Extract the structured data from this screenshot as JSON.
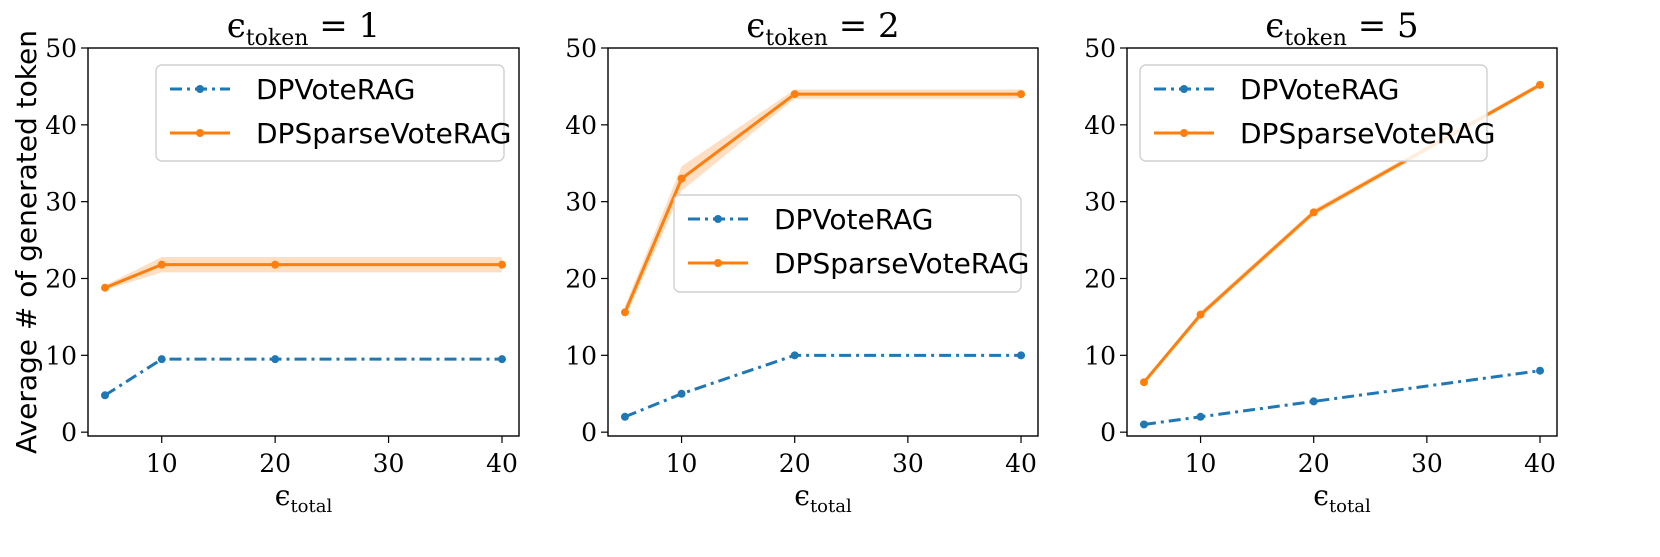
{
  "chart_data": [
    {
      "type": "line",
      "title": {
        "symbol": "ϵ",
        "sub": "token",
        "rest": " = 1"
      },
      "ylabel": "Average # of generated token",
      "xlabel": {
        "symbol": "ϵ",
        "sub": "total"
      },
      "xlim": [
        3.5,
        41.5
      ],
      "ylim": [
        -0.5,
        50
      ],
      "xticks": [
        "10",
        "20",
        "30",
        "40"
      ],
      "yticks": [
        "0",
        "10",
        "20",
        "30",
        "40",
        "50"
      ],
      "legend_position": "upper-center",
      "series": [
        {
          "name": "DPVoteRAG",
          "color": "#1f77b4",
          "dash": "dashdot",
          "x": [
            5,
            10,
            20,
            40
          ],
          "y": [
            4.8,
            9.5,
            9.5,
            9.5
          ]
        },
        {
          "name": "DPSparseVoteRAG",
          "color": "#ff7f0e",
          "dash": "solid",
          "x": [
            5,
            10,
            20,
            40
          ],
          "y": [
            18.8,
            21.8,
            21.8,
            21.8
          ],
          "band": [
            0.3,
            1.0,
            1.0,
            1.0
          ]
        }
      ]
    },
    {
      "type": "line",
      "title": {
        "symbol": "ϵ",
        "sub": "token",
        "rest": " = 2"
      },
      "ylabel": "",
      "xlabel": {
        "symbol": "ϵ",
        "sub": "total"
      },
      "xlim": [
        3.5,
        41.5
      ],
      "ylim": [
        -0.5,
        50
      ],
      "xticks": [
        "10",
        "20",
        "30",
        "40"
      ],
      "yticks": [
        "0",
        "10",
        "20",
        "30",
        "40",
        "50"
      ],
      "legend_position": "center-right",
      "series": [
        {
          "name": "DPVoteRAG",
          "color": "#1f77b4",
          "dash": "dashdot",
          "x": [
            5,
            10,
            20,
            40
          ],
          "y": [
            2.0,
            5.0,
            10.0,
            10.0
          ]
        },
        {
          "name": "DPSparseVoteRAG",
          "color": "#ff7f0e",
          "dash": "solid",
          "x": [
            5,
            10,
            20,
            40
          ],
          "y": [
            15.6,
            33.0,
            44.0,
            44.0
          ],
          "band": [
            0.8,
            1.6,
            0.6,
            0.6
          ]
        }
      ]
    },
    {
      "type": "line",
      "title": {
        "symbol": "ϵ",
        "sub": "token",
        "rest": " = 5"
      },
      "ylabel": "",
      "xlabel": {
        "symbol": "ϵ",
        "sub": "total"
      },
      "xlim": [
        3.5,
        41.5
      ],
      "ylim": [
        -0.5,
        50
      ],
      "xticks": [
        "10",
        "20",
        "30",
        "40"
      ],
      "yticks": [
        "0",
        "10",
        "20",
        "30",
        "40",
        "50"
      ],
      "legend_position": "upper-left",
      "series": [
        {
          "name": "DPVoteRAG",
          "color": "#1f77b4",
          "dash": "dashdot",
          "x": [
            5,
            10,
            20,
            40
          ],
          "y": [
            1.0,
            2.0,
            4.0,
            8.0
          ]
        },
        {
          "name": "DPSparseVoteRAG",
          "color": "#ff7f0e",
          "dash": "solid",
          "x": [
            5,
            10,
            20,
            40
          ],
          "y": [
            6.5,
            15.3,
            28.6,
            45.2
          ],
          "band": [
            0.3,
            0.4,
            0.4,
            0.3
          ]
        }
      ]
    }
  ]
}
